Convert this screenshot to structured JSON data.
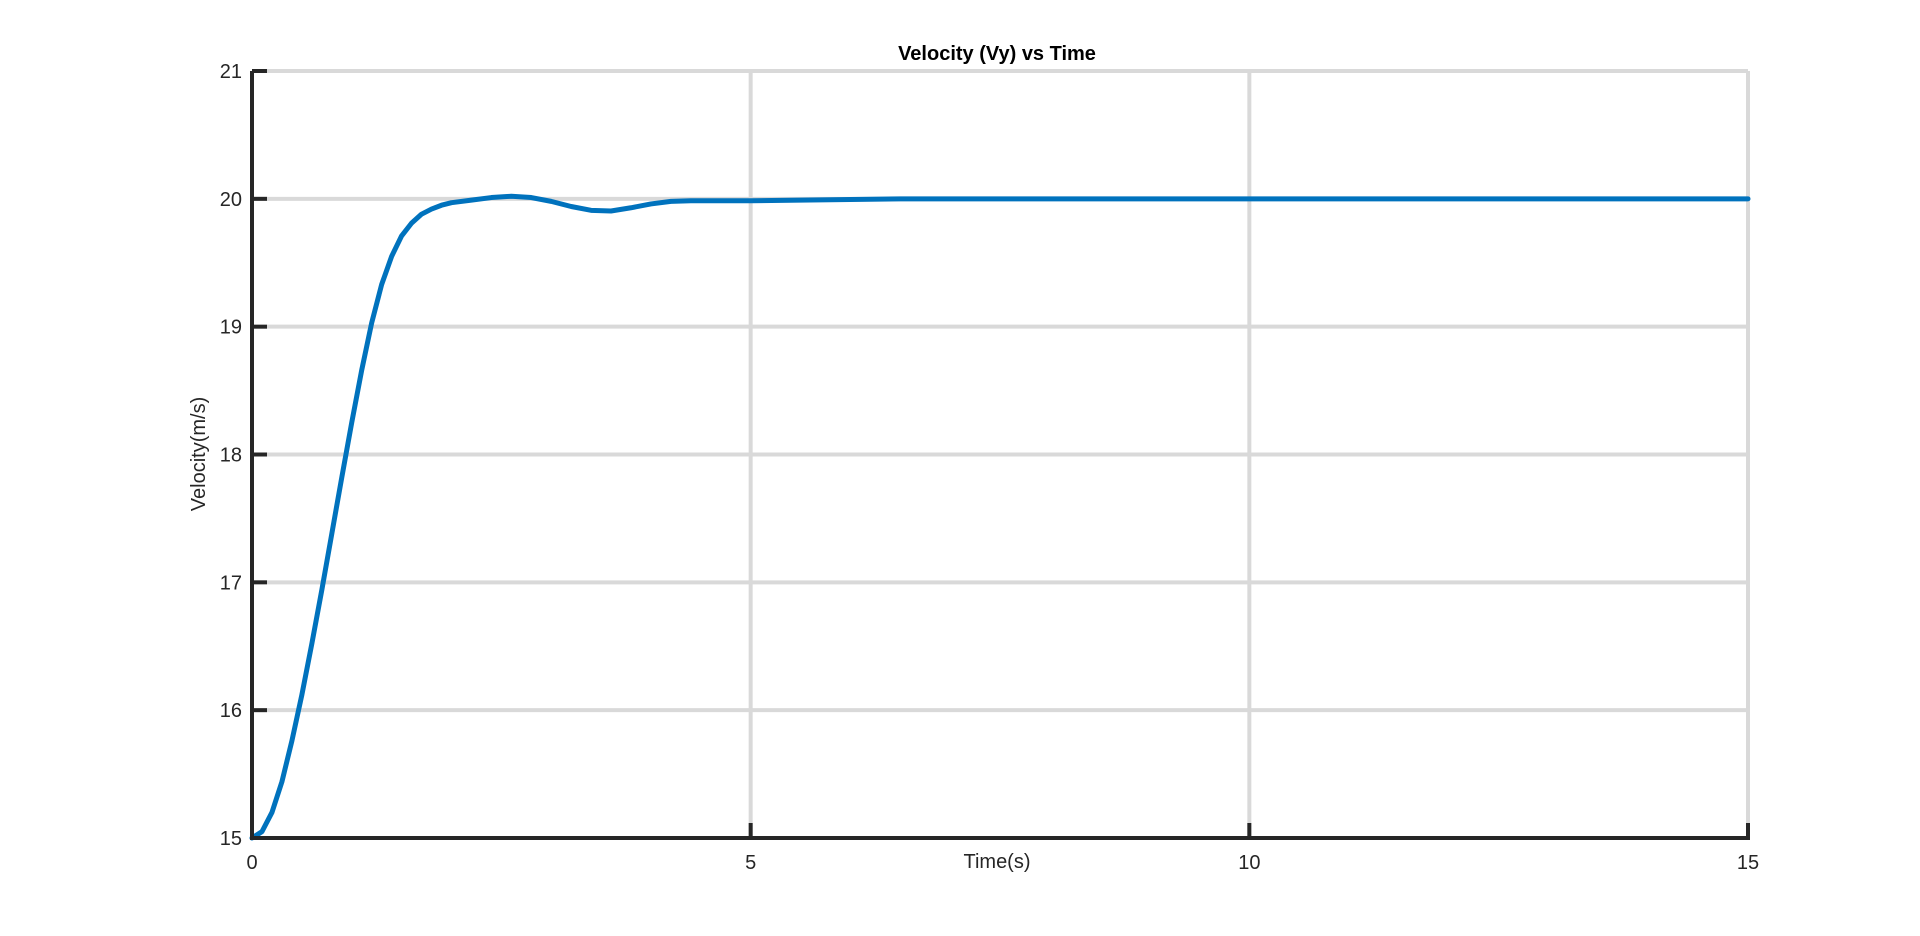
{
  "chart_data": {
    "type": "line",
    "title": "Velocity (Vy) vs Time",
    "xlabel": "Time(s)",
    "ylabel": "Velocity(m/s)",
    "xlim": [
      0,
      15
    ],
    "ylim": [
      15,
      21
    ],
    "xticks": [
      0,
      5,
      10,
      15
    ],
    "yticks": [
      15,
      16,
      17,
      18,
      19,
      20,
      21
    ],
    "xtick_labels": [
      "0",
      "5",
      "10",
      "15"
    ],
    "ytick_labels": [
      "15",
      "16",
      "17",
      "18",
      "19",
      "20",
      "21"
    ],
    "grid": true,
    "colors": {
      "series": "#0072BD",
      "grid": "#d9d9d9",
      "axis": "#262626"
    },
    "series": [
      {
        "x": [
          0,
          0.1,
          0.2,
          0.3,
          0.4,
          0.5,
          0.6,
          0.7,
          0.8,
          0.9,
          1.0,
          1.1,
          1.2,
          1.3,
          1.4,
          1.5,
          1.6,
          1.7,
          1.8,
          1.9,
          2.0,
          2.2,
          2.4,
          2.6,
          2.8,
          3.0,
          3.2,
          3.4,
          3.6,
          3.8,
          4.0,
          4.2,
          4.4,
          4.6,
          4.8,
          5.0,
          5.5,
          6.0,
          6.5,
          7.0,
          8.0,
          9.0,
          10.0,
          11.0,
          12.0,
          13.0,
          14.0,
          15.0
        ],
        "y": [
          15.0,
          15.05,
          15.2,
          15.44,
          15.76,
          16.12,
          16.52,
          16.94,
          17.38,
          17.82,
          18.25,
          18.66,
          19.03,
          19.33,
          19.55,
          19.71,
          19.81,
          19.88,
          19.92,
          19.95,
          19.97,
          19.99,
          20.01,
          20.02,
          20.01,
          19.98,
          19.94,
          19.91,
          19.905,
          19.93,
          19.96,
          19.98,
          19.985,
          19.985,
          19.985,
          19.985,
          19.99,
          19.995,
          20.0,
          20.0,
          20.0,
          20.0,
          20.0,
          20.0,
          20.0,
          20.0,
          20.0,
          20.0
        ]
      }
    ]
  }
}
